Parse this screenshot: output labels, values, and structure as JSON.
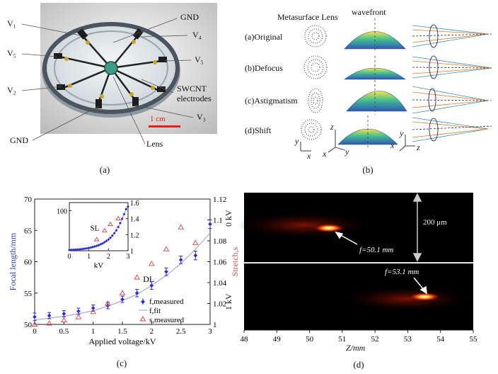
{
  "panel_a": {
    "labels": {
      "v1": "V₁",
      "v5_left": "V₅",
      "v2": "V₂",
      "gnd_bottom": "GND",
      "gnd_top": "GND",
      "v4": "V₄",
      "v5_right": "V₅",
      "swcnt_line1": "SWCNT",
      "swcnt_line2": "electrodes",
      "v3": "V₃",
      "lens": "Lens",
      "scale": "1 cm"
    },
    "caption": "(a)"
  },
  "panel_b": {
    "header_lens": "Metasurface Lens",
    "header_wavefront": "wavefront",
    "rows": [
      "(a)Original",
      "(b)Defocus",
      "(c)Astigmatism",
      "(d)Shift"
    ],
    "axes": {
      "y": "y",
      "x": "x",
      "z": "z"
    },
    "caption": "(b)"
  },
  "panel_c": {
    "caption": "(c)",
    "chart_data": {
      "type": "scatter",
      "xlabel": "Applied voltage/kV",
      "ylabel": "Focal length/mm",
      "y2label": "Stretch,s",
      "xlim": [
        0,
        3
      ],
      "ylim": [
        50,
        70
      ],
      "y2lim": [
        1.0,
        1.12
      ],
      "xticks": [
        "0",
        "0.5",
        "1",
        "1.5",
        "2",
        "2.5",
        "3"
      ],
      "yticks": [
        "50",
        "55",
        "60",
        "65",
        "70"
      ],
      "y2ticks": [
        "1",
        "1.02",
        "1.04",
        "1.06",
        "1.08",
        "1.1",
        "1.12"
      ],
      "legend": {
        "placement": "bottom-right",
        "entries": [
          "f,measured",
          "f,fit",
          "s,measured"
        ]
      },
      "annotation": "DL",
      "series": [
        {
          "name": "f,measured",
          "x": [
            0,
            0.25,
            0.5,
            0.75,
            1,
            1.25,
            1.5,
            1.75,
            2,
            2.25,
            2.5,
            2.75,
            3
          ],
          "y": [
            51.2,
            51.4,
            51.7,
            52.1,
            52.6,
            53.0,
            54.0,
            55.0,
            56.2,
            58.4,
            60.3,
            61.0,
            66.0
          ],
          "err": [
            0.6,
            0.5,
            0.5,
            0.5,
            0.5,
            0.5,
            0.5,
            0.6,
            0.6,
            0.6,
            0.6,
            0.7,
            0.7
          ]
        },
        {
          "name": "f,fit",
          "x": [
            0,
            0.25,
            0.5,
            0.75,
            1,
            1.25,
            1.5,
            1.75,
            2,
            2.25,
            2.5,
            2.75,
            3
          ],
          "y": [
            50.7,
            51.0,
            51.3,
            51.7,
            52.2,
            52.9,
            53.8,
            54.8,
            56.2,
            57.8,
            59.7,
            62.0,
            64.6
          ]
        },
        {
          "name": "s,measured",
          "x": [
            0,
            0.25,
            0.5,
            0.75,
            1,
            1.25,
            1.5,
            1.75,
            2,
            2.25,
            2.5,
            2.75
          ],
          "y2": [
            1.0,
            1.001,
            1.004,
            1.007,
            1.012,
            1.02,
            1.03,
            1.045,
            1.058,
            1.072,
            1.093,
            1.078
          ]
        }
      ],
      "inset": {
        "annotation": "SL",
        "xlabel": "kV",
        "xlim": [
          0,
          3
        ],
        "ylim": [
          50,
          110
        ],
        "y2lim": [
          1.0,
          1.6
        ],
        "xticks": [
          "0",
          "1",
          "2",
          "3"
        ],
        "yticks": [
          "100"
        ],
        "y2ticks": [
          "1",
          "1.2",
          "1.4",
          "1.6"
        ],
        "x": [
          0,
          0.1,
          0.2,
          0.3,
          0.4,
          0.5,
          0.6,
          0.7,
          0.8,
          0.9,
          1.0,
          1.1,
          1.2,
          1.3,
          1.4,
          1.5,
          1.6,
          1.7,
          1.8,
          1.9,
          2.0,
          2.1,
          2.2,
          2.3,
          2.4,
          2.5,
          2.6,
          2.7,
          2.8,
          2.9,
          3.0
        ],
        "y": [
          51.0,
          51.1,
          51.2,
          51.3,
          51.5,
          51.7,
          52.0,
          52.3,
          52.6,
          53.0,
          53.5,
          54.0,
          54.6,
          55.3,
          56.1,
          57.0,
          58.0,
          59.2,
          60.6,
          62.2,
          64.0,
          66.2,
          68.8,
          71.8,
          75.4,
          79.6,
          84.4,
          89.8,
          95.6,
          101.8,
          105.0
        ],
        "s_x": [
          1.4,
          1.8,
          2.1,
          2.5
        ],
        "s_y2": [
          1.14,
          1.25,
          1.33,
          1.4
        ]
      }
    }
  },
  "panel_d": {
    "caption": "(d)",
    "xlabel": "Z/mm",
    "xticks": [
      "48",
      "49",
      "50",
      "51",
      "52",
      "53",
      "54",
      "55"
    ],
    "row_top_label": "0 kV",
    "row_bottom_label": "1 kV",
    "scale_label": "200 μm",
    "focus_top": "f=50.1 mm",
    "focus_bottom": "f=53.1 mm"
  }
}
